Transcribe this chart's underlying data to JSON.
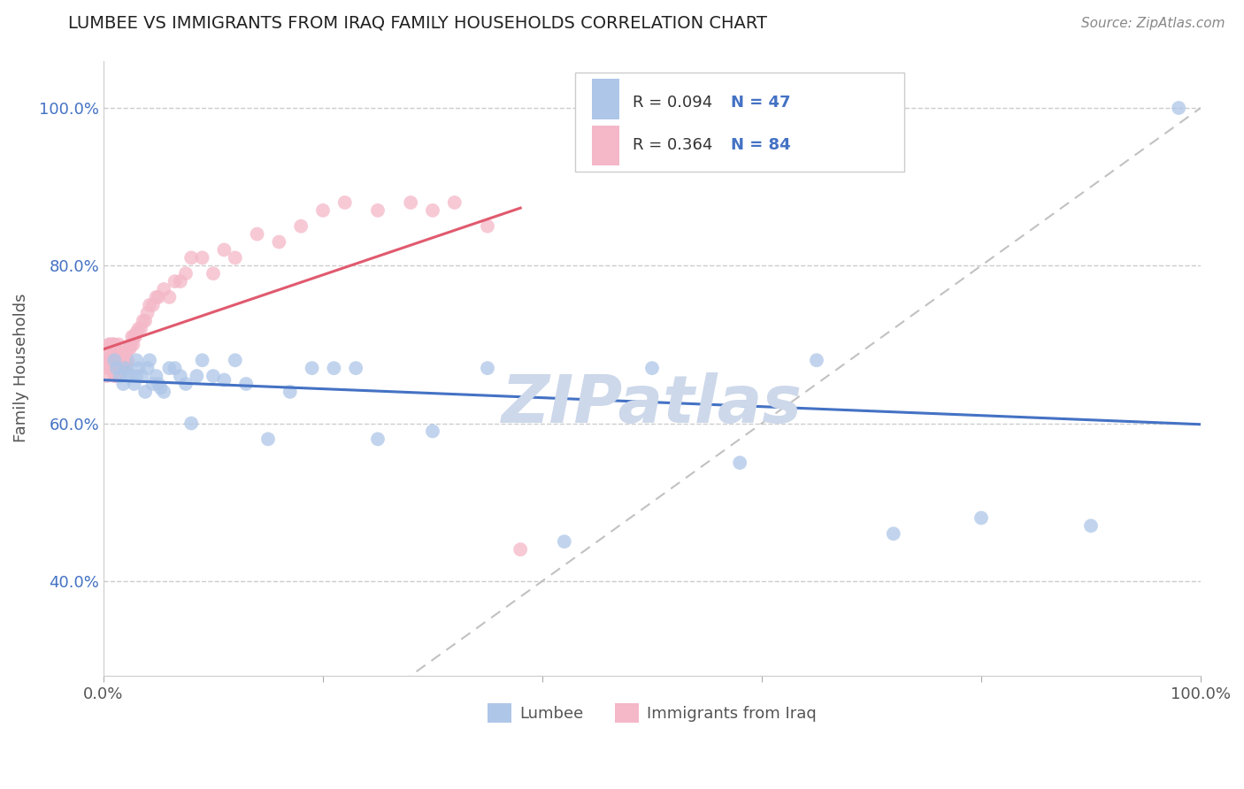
{
  "title": "LUMBEE VS IMMIGRANTS FROM IRAQ FAMILY HOUSEHOLDS CORRELATION CHART",
  "source": "Source: ZipAtlas.com",
  "xlabel": "",
  "ylabel": "Family Households",
  "xlim": [
    0.0,
    1.0
  ],
  "ylim": [
    0.28,
    1.06
  ],
  "xticks": [
    0.0,
    0.2,
    0.4,
    0.6,
    0.8,
    1.0
  ],
  "xticklabels": [
    "0.0%",
    "",
    "",
    "",
    "",
    "100.0%"
  ],
  "yticks": [
    0.4,
    0.6,
    0.8,
    1.0
  ],
  "yticklabels": [
    "40.0%",
    "60.0%",
    "80.0%",
    "100.0%"
  ],
  "legend_r1": "R = 0.094",
  "legend_n1": "N = 47",
  "legend_r2": "R = 0.364",
  "legend_n2": "N = 84",
  "color_lumbee": "#aec6e8",
  "color_iraq": "#f4b8c8",
  "color_lumbee_line": "#4472c4",
  "color_iraq_line": "#e05a6e",
  "lumbee_x": [
    0.01,
    0.012,
    0.015,
    0.018,
    0.02,
    0.022,
    0.025,
    0.028,
    0.03,
    0.03,
    0.032,
    0.035,
    0.038,
    0.04,
    0.042,
    0.045,
    0.048,
    0.05,
    0.052,
    0.055,
    0.06,
    0.065,
    0.07,
    0.075,
    0.08,
    0.085,
    0.09,
    0.1,
    0.11,
    0.12,
    0.13,
    0.15,
    0.17,
    0.19,
    0.21,
    0.23,
    0.25,
    0.3,
    0.35,
    0.42,
    0.5,
    0.58,
    0.65,
    0.72,
    0.8,
    0.9,
    0.98
  ],
  "lumbee_y": [
    0.68,
    0.67,
    0.66,
    0.65,
    0.67,
    0.665,
    0.66,
    0.65,
    0.66,
    0.68,
    0.67,
    0.66,
    0.64,
    0.67,
    0.68,
    0.65,
    0.66,
    0.65,
    0.645,
    0.64,
    0.67,
    0.67,
    0.66,
    0.65,
    0.6,
    0.66,
    0.68,
    0.66,
    0.655,
    0.68,
    0.65,
    0.58,
    0.64,
    0.67,
    0.67,
    0.67,
    0.58,
    0.59,
    0.67,
    0.45,
    0.67,
    0.55,
    0.68,
    0.46,
    0.48,
    0.47,
    1.0
  ],
  "iraq_x": [
    0.003,
    0.004,
    0.005,
    0.005,
    0.006,
    0.006,
    0.006,
    0.007,
    0.007,
    0.007,
    0.008,
    0.008,
    0.008,
    0.008,
    0.009,
    0.009,
    0.009,
    0.01,
    0.01,
    0.01,
    0.01,
    0.011,
    0.011,
    0.011,
    0.012,
    0.012,
    0.012,
    0.013,
    0.013,
    0.014,
    0.014,
    0.014,
    0.015,
    0.015,
    0.015,
    0.016,
    0.016,
    0.017,
    0.017,
    0.018,
    0.018,
    0.019,
    0.02,
    0.02,
    0.021,
    0.022,
    0.023,
    0.024,
    0.025,
    0.026,
    0.027,
    0.028,
    0.029,
    0.03,
    0.032,
    0.034,
    0.036,
    0.038,
    0.04,
    0.042,
    0.045,
    0.048,
    0.05,
    0.055,
    0.06,
    0.065,
    0.07,
    0.075,
    0.08,
    0.09,
    0.1,
    0.11,
    0.12,
    0.14,
    0.16,
    0.18,
    0.2,
    0.22,
    0.25,
    0.28,
    0.3,
    0.32,
    0.35,
    0.38
  ],
  "iraq_y": [
    0.66,
    0.67,
    0.68,
    0.7,
    0.68,
    0.69,
    0.7,
    0.67,
    0.68,
    0.69,
    0.67,
    0.68,
    0.69,
    0.7,
    0.67,
    0.68,
    0.7,
    0.66,
    0.67,
    0.68,
    0.7,
    0.67,
    0.68,
    0.695,
    0.66,
    0.67,
    0.68,
    0.665,
    0.68,
    0.665,
    0.68,
    0.7,
    0.66,
    0.675,
    0.69,
    0.67,
    0.685,
    0.67,
    0.685,
    0.67,
    0.685,
    0.68,
    0.67,
    0.685,
    0.675,
    0.68,
    0.695,
    0.695,
    0.7,
    0.71,
    0.7,
    0.71,
    0.71,
    0.715,
    0.72,
    0.72,
    0.73,
    0.73,
    0.74,
    0.75,
    0.75,
    0.76,
    0.76,
    0.77,
    0.76,
    0.78,
    0.78,
    0.79,
    0.81,
    0.81,
    0.79,
    0.82,
    0.81,
    0.84,
    0.83,
    0.85,
    0.87,
    0.88,
    0.87,
    0.88,
    0.87,
    0.88,
    0.85,
    0.44
  ],
  "background_color": "#ffffff",
  "grid_color": "#cccccc",
  "title_color": "#222222",
  "axis_color": "#555555",
  "watermark": "ZIPatlas",
  "watermark_color": "#cdd8ea"
}
